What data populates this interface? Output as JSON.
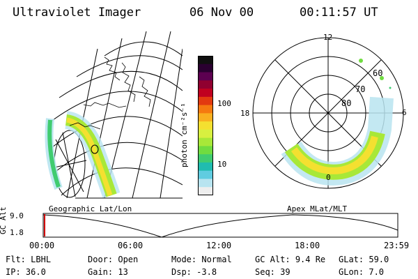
{
  "header": {
    "instrument": "Ultraviolet Imager",
    "date": "06 Nov 00",
    "time": "00:11:57 UT"
  },
  "colorbar": {
    "unit_label": "photon cm⁻²s⁻¹",
    "ticks": [
      "100",
      "10"
    ],
    "colors": [
      "#101010",
      "#2a0030",
      "#5c0050",
      "#900030",
      "#c00020",
      "#e23a10",
      "#f57a10",
      "#f9b020",
      "#f4e030",
      "#d8f040",
      "#a8e838",
      "#70dc40",
      "#40cc70",
      "#20bcb0",
      "#60cce0",
      "#b8e4f0",
      "#eeeeee"
    ]
  },
  "left_map": {
    "caption": "Geographic Lat/Lon"
  },
  "right_map": {
    "caption": "Apex MLat/MLT",
    "mlt_labels": {
      "top": "12",
      "left": "18",
      "bottom": "0",
      "right": "6"
    },
    "lat_labels": [
      "60",
      "70",
      "80"
    ]
  },
  "timeline": {
    "ylabel": "GC Alt",
    "yticks": [
      "9.0",
      "1.8"
    ],
    "xticks": [
      "00:00",
      "06:00",
      "12:00",
      "18:00",
      "23:59"
    ]
  },
  "info": {
    "flt": {
      "label": "Flt:",
      "value": "LBHL"
    },
    "door": {
      "label": "Door:",
      "value": "Open"
    },
    "mode": {
      "label": "Mode:",
      "value": "Normal"
    },
    "gcalt": {
      "label": "GC Alt:",
      "value": "9.4 Re"
    },
    "glat": {
      "label": "GLat:",
      "value": "59.0"
    },
    "ip": {
      "label": "IP:",
      "value": "36.0"
    },
    "gain": {
      "label": "Gain:",
      "value": "13"
    },
    "dsp": {
      "label": "Dsp:",
      "value": "-3.8"
    },
    "seq": {
      "label": "Seq:",
      "value": "39"
    },
    "glon": {
      "label": "GLon:",
      "value": "7.0"
    }
  }
}
